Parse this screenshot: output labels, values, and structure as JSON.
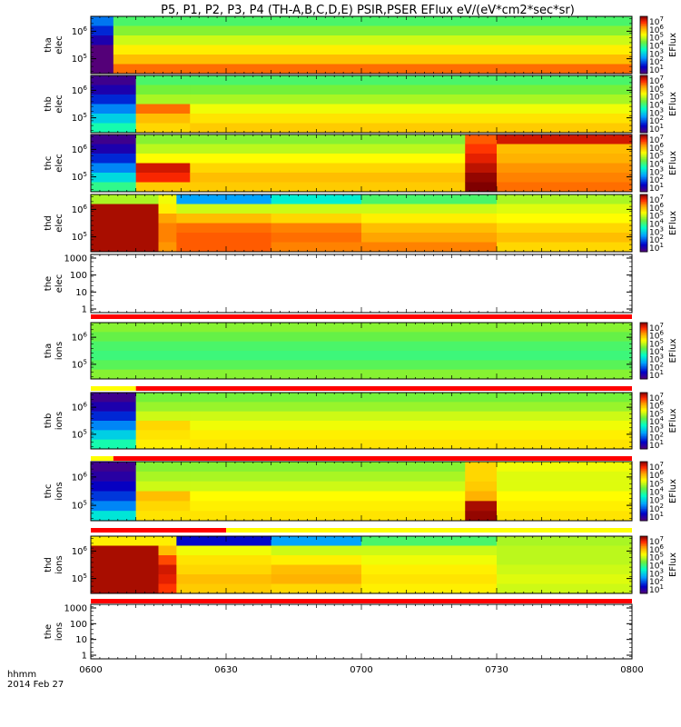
{
  "chart_data": {
    "type": "heatmap",
    "title": "P5, P1, P2, P3, P4 (TH-A,B,C,D,E) PSIR,PSER EFlux eV/(eV*cm2*sec*sr)",
    "x_ticks": [
      "0600",
      "0630",
      "0700",
      "0730",
      "0800"
    ],
    "x_range": [
      "0600",
      "0800"
    ],
    "x_label": "hhmm",
    "date": "2014 Feb 27",
    "colorbar": {
      "label": "EFlux",
      "ticks": [
        "10^7",
        "10^6",
        "10^5",
        "10^4",
        "10^3",
        "10^2",
        "10^1"
      ],
      "range_log10": [
        1,
        7.3
      ]
    },
    "panels": [
      {
        "probe": "tha",
        "species": "elec",
        "label": "tha\nelec",
        "type": "spectrogram",
        "y_ticks": [
          "10^6",
          "10^5"
        ],
        "colorbar": true,
        "blocks": [
          {
            "x0": 0,
            "x1": 5,
            "rows": [
              2.5,
              2.0,
              1.5,
              1.0,
              0.5,
              0.3
            ]
          },
          {
            "x0": 5,
            "x1": 120,
            "rows": [
              4.2,
              4.6,
              5.0,
              5.4,
              5.8,
              6.3
            ]
          }
        ]
      },
      {
        "probe": "thb",
        "species": "elec",
        "label": "thb\nelec",
        "type": "spectrogram",
        "y_ticks": [
          "10^6",
          "10^5"
        ],
        "colorbar": true,
        "blocks": [
          {
            "x0": 0,
            "x1": 10,
            "rows": [
              1.2,
              1.5,
              2.0,
              2.6,
              3.2,
              3.8
            ]
          },
          {
            "x0": 10,
            "x1": 22,
            "rows": [
              4.2,
              4.5,
              4.8,
              6.3,
              5.8,
              5.6
            ]
          },
          {
            "x0": 22,
            "x1": 120,
            "rows": [
              4.2,
              4.5,
              4.8,
              5.2,
              5.5,
              5.7
            ]
          }
        ]
      },
      {
        "probe": "thc",
        "species": "elec",
        "label": "thc\nelec",
        "type": "spectrogram",
        "y_ticks": [
          "10^6",
          "10^5"
        ],
        "colorbar": true,
        "blocks": [
          {
            "x0": 0,
            "x1": 10,
            "rows": [
              1.2,
              1.5,
              2.0,
              2.6,
              3.3,
              4.0
            ]
          },
          {
            "x0": 10,
            "x1": 22,
            "rows": [
              4.6,
              4.9,
              5.3,
              6.9,
              6.7,
              5.7
            ]
          },
          {
            "x0": 22,
            "x1": 83,
            "rows": [
              4.6,
              4.9,
              5.3,
              5.6,
              5.8,
              5.7
            ]
          },
          {
            "x0": 83,
            "x1": 90,
            "rows": [
              6.4,
              6.6,
              6.8,
              7.0,
              7.2,
              7.3
            ]
          },
          {
            "x0": 90,
            "x1": 120,
            "rows": [
              6.9,
              5.8,
              5.9,
              6.1,
              6.2,
              6.3
            ]
          }
        ]
      },
      {
        "probe": "thd",
        "species": "elec",
        "label": "thd\nelec",
        "type": "spectrogram",
        "y_ticks": [
          "10^6",
          "10^5"
        ],
        "colorbar": true,
        "blocks": [
          {
            "x0": 0,
            "x1": 15,
            "rows": [
              4.8,
              7.1,
              7.1,
              7.1,
              7.1,
              7.1
            ]
          },
          {
            "x0": 15,
            "x1": 19,
            "rows": [
              5.2,
              5.4,
              6.0,
              6.2,
              6.2,
              6.1
            ]
          },
          {
            "x0": 19,
            "x1": 40,
            "rows": [
              2.8,
              5.0,
              5.8,
              6.3,
              6.4,
              6.4
            ]
          },
          {
            "x0": 40,
            "x1": 60,
            "rows": [
              3.5,
              5.0,
              5.6,
              6.2,
              6.3,
              6.2
            ]
          },
          {
            "x0": 60,
            "x1": 90,
            "rows": [
              4.2,
              5.0,
              5.4,
              5.8,
              6.0,
              6.2
            ]
          },
          {
            "x0": 90,
            "x1": 120,
            "rows": [
              4.8,
              5.1,
              5.3,
              5.6,
              5.8,
              5.6
            ]
          }
        ]
      },
      {
        "probe": "the",
        "species": "elec",
        "label": "the\nelec",
        "type": "empty",
        "y_ticks": [
          "1000",
          "100",
          "10",
          "1"
        ],
        "colorbar": false
      },
      {
        "probe": "tha",
        "species": "ions",
        "label": "tha\nions",
        "type": "spectrogram",
        "y_ticks": [
          "10^6",
          "10^5"
        ],
        "colorbar": true,
        "blocks": [
          {
            "x0": 0,
            "x1": 120,
            "rows": [
              4.6,
              4.4,
              4.2,
              4.1,
              4.3,
              4.6
            ]
          }
        ]
      },
      {
        "probe": "thb",
        "species": "ions",
        "label": "thb\nions",
        "type": "spectrogram",
        "y_ticks": [
          "10^6",
          "10^5"
        ],
        "colorbar": true,
        "blocks": [
          {
            "x0": 0,
            "x1": 10,
            "rows": [
              1.2,
              1.5,
              2.0,
              2.6,
              3.2,
              3.8
            ]
          },
          {
            "x0": 10,
            "x1": 22,
            "rows": [
              4.5,
              4.7,
              5.0,
              5.6,
              5.5,
              5.4
            ]
          },
          {
            "x0": 22,
            "x1": 120,
            "rows": [
              4.5,
              4.7,
              5.0,
              5.2,
              5.4,
              5.5
            ]
          }
        ]
      },
      {
        "probe": "thc",
        "species": "ions",
        "label": "thc\nions",
        "type": "spectrogram",
        "y_ticks": [
          "10^6",
          "10^5"
        ],
        "colorbar": true,
        "blocks": [
          {
            "x0": 0,
            "x1": 10,
            "rows": [
              1.2,
              1.4,
              1.7,
              2.1,
              2.6,
              3.4
            ]
          },
          {
            "x0": 10,
            "x1": 22,
            "rows": [
              4.6,
              4.8,
              5.0,
              5.8,
              5.6,
              5.5
            ]
          },
          {
            "x0": 22,
            "x1": 83,
            "rows": [
              4.6,
              4.8,
              5.0,
              5.3,
              5.4,
              5.5
            ]
          },
          {
            "x0": 83,
            "x1": 90,
            "rows": [
              5.6,
              5.6,
              5.7,
              5.9,
              7.1,
              7.2
            ]
          },
          {
            "x0": 90,
            "x1": 120,
            "rows": [
              5.2,
              5.1,
              5.1,
              5.3,
              5.4,
              5.5
            ]
          }
        ]
      },
      {
        "probe": "thd",
        "species": "ions",
        "label": "thd\nions",
        "type": "spectrogram",
        "y_ticks": [
          "10^6",
          "10^5"
        ],
        "colorbar": true,
        "blocks": [
          {
            "x0": 0,
            "x1": 15,
            "rows": [
              5.4,
              7.1,
              7.1,
              7.1,
              7.1,
              7.1
            ]
          },
          {
            "x0": 15,
            "x1": 19,
            "rows": [
              5.4,
              5.8,
              6.5,
              6.9,
              6.8,
              6.6
            ]
          },
          {
            "x0": 19,
            "x1": 40,
            "rows": [
              1.8,
              5.2,
              5.5,
              5.6,
              5.8,
              5.7
            ]
          },
          {
            "x0": 40,
            "x1": 60,
            "rows": [
              2.8,
              5.0,
              5.4,
              5.8,
              5.9,
              5.6
            ]
          },
          {
            "x0": 60,
            "x1": 90,
            "rows": [
              4.2,
              5.0,
              5.2,
              5.4,
              5.5,
              5.4
            ]
          },
          {
            "x0": 90,
            "x1": 120,
            "rows": [
              4.8,
              4.9,
              4.9,
              5.0,
              5.1,
              5.0
            ]
          }
        ]
      },
      {
        "probe": "the",
        "species": "ions",
        "label": "the\nions",
        "type": "empty",
        "y_ticks": [
          "1000",
          "100",
          "10",
          "1"
        ],
        "colorbar": false
      }
    ],
    "status_bars": [
      {
        "after_panel": 4,
        "segments": [
          {
            "x0": 0,
            "x1": 120,
            "color": "#ff0000"
          }
        ]
      },
      {
        "after_panel": 5,
        "segments": [
          {
            "x0": 0,
            "x1": 10,
            "color": "#ffff00"
          },
          {
            "x0": 10,
            "x1": 120,
            "color": "#ff0000"
          }
        ]
      },
      {
        "after_panel": 6,
        "segments": [
          {
            "x0": 0,
            "x1": 5,
            "color": "#ffff00"
          },
          {
            "x0": 5,
            "x1": 120,
            "color": "#ff0000"
          }
        ]
      },
      {
        "after_panel": 7,
        "segments": [
          {
            "x0": 0,
            "x1": 30,
            "color": "#ff0000"
          },
          {
            "x0": 30,
            "x1": 120,
            "color": "#ffff00"
          }
        ]
      },
      {
        "after_panel": 8,
        "segments": [
          {
            "x0": 0,
            "x1": 120,
            "color": "#ff0000"
          }
        ]
      }
    ]
  }
}
